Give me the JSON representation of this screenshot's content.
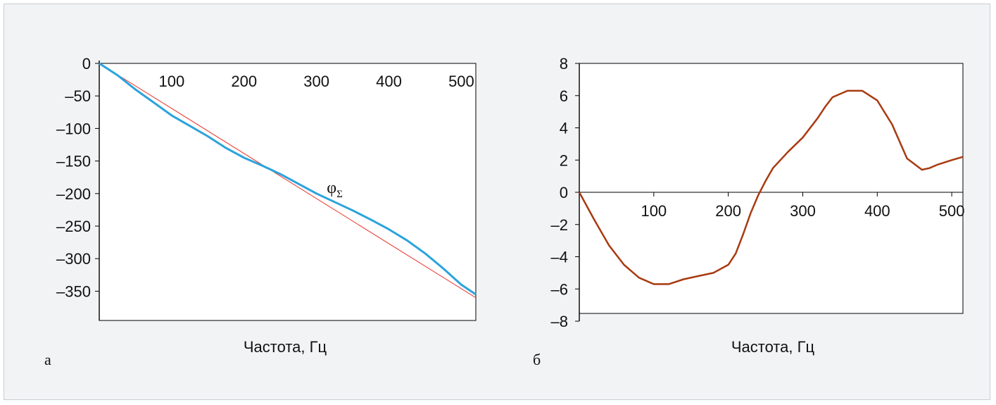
{
  "chart_data": [
    {
      "type": "line",
      "panel_label": "а",
      "xlabel": "Частота, Гц",
      "ylabel": "",
      "xlim": [
        0,
        520
      ],
      "ylim": [
        -395,
        0
      ],
      "x_ticks": [
        100,
        200,
        300,
        400,
        500
      ],
      "y_ticks": [
        0,
        -50,
        -100,
        -150,
        -200,
        -250,
        -300,
        -350
      ],
      "y_tick_labels": [
        "0",
        "–50",
        "–100",
        "–150",
        "–200",
        "–250",
        "–300",
        "–350"
      ],
      "annotation": {
        "text": "φ",
        "subscript": "Σ",
        "x": 320,
        "y": -200
      },
      "series": [
        {
          "color": "#e8342a",
          "x": [
            0,
            520
          ],
          "y": [
            0,
            -360
          ]
        },
        {
          "color": "#2aa3dc",
          "x": [
            0,
            25,
            50,
            75,
            100,
            125,
            150,
            175,
            200,
            225,
            250,
            275,
            300,
            325,
            350,
            375,
            400,
            425,
            450,
            475,
            500,
            520
          ],
          "y": [
            0,
            -18,
            -40,
            -60,
            -80,
            -96,
            -112,
            -130,
            -145,
            -157,
            -170,
            -185,
            -200,
            -213,
            -226,
            -240,
            -255,
            -272,
            -292,
            -315,
            -340,
            -355
          ]
        }
      ]
    },
    {
      "type": "line",
      "panel_label": "б",
      "xlabel": "Частота, Гц",
      "ylabel": "",
      "xlim": [
        0,
        515
      ],
      "ylim": [
        -8,
        8
      ],
      "x_ticks": [
        100,
        200,
        300,
        400,
        500
      ],
      "y_ticks": [
        8,
        6,
        4,
        2,
        0,
        -2,
        -4,
        -6,
        -8
      ],
      "y_tick_labels": [
        "8",
        "6",
        "4",
        "2",
        "0",
        "–2",
        "–4",
        "–6",
        "–8"
      ],
      "series": [
        {
          "color": "#a83a10",
          "x": [
            0,
            20,
            40,
            60,
            80,
            100,
            120,
            140,
            160,
            180,
            200,
            210,
            220,
            230,
            240,
            250,
            260,
            280,
            300,
            320,
            330,
            340,
            360,
            380,
            400,
            420,
            440,
            460,
            470,
            480,
            500,
            515
          ],
          "y": [
            0,
            -1.7,
            -3.3,
            -4.5,
            -5.3,
            -5.7,
            -5.7,
            -5.4,
            -5.2,
            -5.0,
            -4.5,
            -3.8,
            -2.6,
            -1.3,
            -0.2,
            0.7,
            1.5,
            2.5,
            3.4,
            4.6,
            5.3,
            5.9,
            6.3,
            6.3,
            5.7,
            4.2,
            2.1,
            1.4,
            1.5,
            1.7,
            2.0,
            2.2
          ]
        }
      ]
    }
  ]
}
